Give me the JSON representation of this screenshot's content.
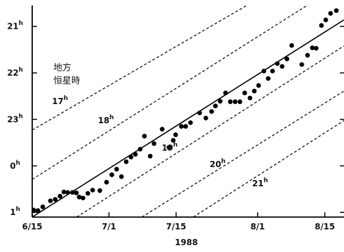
{
  "chart_data": {
    "type": "scatter",
    "xlabel": "1988",
    "x_ticks": [
      {
        "label": "6/15",
        "value": 0
      },
      {
        "label": "7/1",
        "value": 16
      },
      {
        "label": "7/15",
        "value": 30
      },
      {
        "label": "8/1",
        "value": 47
      },
      {
        "label": "8/15",
        "value": 61
      }
    ],
    "xlim": [
      0,
      65
    ],
    "y_ticks": [
      {
        "label": "21",
        "sup": "h",
        "value": 21
      },
      {
        "label": "22",
        "sup": "h",
        "value": 22
      },
      {
        "label": "23",
        "sup": "h",
        "value": 23
      },
      {
        "label": "0",
        "sup": "h",
        "value": 24
      },
      {
        "label": "1",
        "sup": "h",
        "value": 25
      }
    ],
    "ylim": [
      20.55,
      25.1
    ],
    "y_inverted": true,
    "legend_lines": [
      "地方",
      "恒星時"
    ],
    "reference_lines": [
      {
        "label": "17",
        "sup": "h"
      },
      {
        "label": "18",
        "sup": "h"
      },
      {
        "label": "19",
        "sup": "h"
      },
      {
        "label": "20",
        "sup": "h"
      },
      {
        "label": "21",
        "sup": "h"
      }
    ],
    "points": [
      [
        0.3,
        24.95
      ],
      [
        1.2,
        24.96
      ],
      [
        2.2,
        24.88
      ],
      [
        3.8,
        24.75
      ],
      [
        4.8,
        24.72
      ],
      [
        5.8,
        24.65
      ],
      [
        6.6,
        24.56
      ],
      [
        7.4,
        24.57
      ],
      [
        8.4,
        24.57
      ],
      [
        9.2,
        24.58
      ],
      [
        9.8,
        24.67
      ],
      [
        10.6,
        24.69
      ],
      [
        11.6,
        24.59
      ],
      [
        12.6,
        24.52
      ],
      [
        14.1,
        24.53
      ],
      [
        15.5,
        24.35
      ],
      [
        16.6,
        24.19
      ],
      [
        17.6,
        24.07
      ],
      [
        18.6,
        24.23
      ],
      [
        19.6,
        23.91
      ],
      [
        20.6,
        23.81
      ],
      [
        21.5,
        23.75
      ],
      [
        22.5,
        23.64
      ],
      [
        23.4,
        23.36
      ],
      [
        24.6,
        23.79
      ],
      [
        25.4,
        23.52
      ],
      [
        27.1,
        23.21
      ],
      [
        28.5,
        23.6
      ],
      [
        29.4,
        23.45
      ],
      [
        29.9,
        23.33
      ],
      [
        31.1,
        23.15
      ],
      [
        32.0,
        23.15
      ],
      [
        33.0,
        23.07
      ],
      [
        34.9,
        22.86
      ],
      [
        36.2,
        22.97
      ],
      [
        37.4,
        22.83
      ],
      [
        38.2,
        22.71
      ],
      [
        39.2,
        22.61
      ],
      [
        40.3,
        22.43
      ],
      [
        41.3,
        22.62
      ],
      [
        42.3,
        22.62
      ],
      [
        43.3,
        22.62
      ],
      [
        44.3,
        22.43
      ],
      [
        45.4,
        22.54
      ],
      [
        46.3,
        22.39
      ],
      [
        47.2,
        22.27
      ],
      [
        48.3,
        21.96
      ],
      [
        49.2,
        22.12
      ],
      [
        50.1,
        21.96
      ],
      [
        51.1,
        21.8
      ],
      [
        52.1,
        21.86
      ],
      [
        53.1,
        21.7
      ],
      [
        54.1,
        21.41
      ],
      [
        56.2,
        21.82
      ],
      [
        57.4,
        21.62
      ],
      [
        58.4,
        21.46
      ],
      [
        59.2,
        21.47
      ],
      [
        60.3,
        20.98
      ],
      [
        61.2,
        20.86
      ],
      [
        62.2,
        20.72
      ],
      [
        63.4,
        20.66
      ]
    ],
    "fit_line": {
      "x": [
        0,
        65
      ],
      "y": [
        25.1,
        20.86
      ]
    },
    "grid": false
  }
}
